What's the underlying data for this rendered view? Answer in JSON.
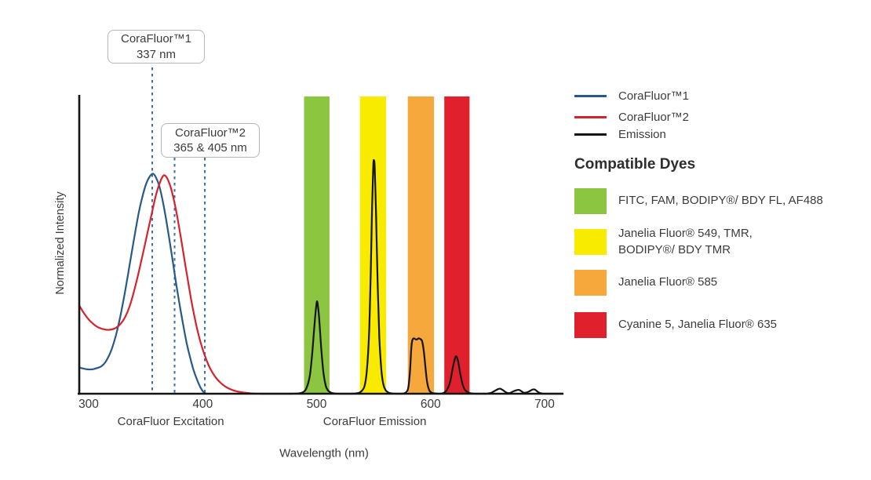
{
  "annotations": {
    "callout_1": {
      "title": "CoraFluor™1",
      "value": "337 nm"
    },
    "callout_2": {
      "title": "CoraFluor™2",
      "value": "365 & 405 nm"
    }
  },
  "legend": {
    "items": [
      {
        "label": "CoraFluor™1",
        "color": "#27598c"
      },
      {
        "label": "CoraFluor™2",
        "color": "#d5232e"
      },
      {
        "label": "Emission",
        "color": "#141414"
      }
    ]
  },
  "dye_panel": {
    "heading": "Compatible Dyes",
    "items": [
      {
        "color": "#8cc540",
        "label": "FITC, FAM, BODIPY®/ BDY FL, AF488"
      },
      {
        "color": "#f9eb00",
        "label": "Janelia Fluor® 549, TMR,\nBODIPY®/ BDY TMR"
      },
      {
        "color": "#f6a83d",
        "label": "Janelia Fluor® 585"
      },
      {
        "color": "#e0202d",
        "label": "Cyanine 5, Janelia Fluor® 635"
      }
    ]
  },
  "chart_data": {
    "type": "line",
    "title": "",
    "xlabel": "Wavelength (nm)",
    "ylabel": "Normalized Intensity",
    "x_ticks": [
      300,
      400,
      500,
      600,
      700
    ],
    "xlim": [
      292,
      716
    ],
    "ylim": [
      0,
      1
    ],
    "grid": false,
    "legend_position": "right",
    "x_section_labels": [
      {
        "text": "CoraFluor Excitation",
        "center_nm": 372
      },
      {
        "text": "CoraFluor Emission",
        "center_nm": 551
      }
    ],
    "marker_lines": [
      {
        "label_nm": 337,
        "plot_nm": 355.8
      },
      {
        "label_nm": 365,
        "plot_nm": 375.4
      },
      {
        "label_nm": 405,
        "plot_nm": 401.9
      }
    ],
    "emission_bands": [
      {
        "range_nm": [
          489,
          511.3
        ],
        "color": "#8cc540",
        "dyes": "FITC, FAM, BODIPY®/ BDY FL, AF488"
      },
      {
        "range_nm": [
          538,
          561
        ],
        "color": "#f9eb00",
        "dyes": "Janelia Fluor® 549, TMR, BODIPY®/ BDY TMR"
      },
      {
        "range_nm": [
          580,
          603
        ],
        "color": "#f6a83d",
        "dyes": "Janelia Fluor® 585"
      },
      {
        "range_nm": [
          612,
          634.2
        ],
        "color": "#e0202d",
        "dyes": "Cyanine 5, Janelia Fluor® 635"
      }
    ],
    "series": [
      {
        "name": "CoraFluor™1",
        "role": "excitation",
        "peaks_nm": [
          337
        ],
        "color": "#27598c",
        "points": [
          [
            292,
            0.088
          ],
          [
            295,
            0.085
          ],
          [
            299,
            0.082
          ],
          [
            303,
            0.082
          ],
          [
            307,
            0.086
          ],
          [
            311,
            0.092
          ],
          [
            315,
            0.108
          ],
          [
            320,
            0.148
          ],
          [
            324,
            0.198
          ],
          [
            328,
            0.265
          ],
          [
            332,
            0.345
          ],
          [
            336,
            0.435
          ],
          [
            340,
            0.525
          ],
          [
            344,
            0.61
          ],
          [
            348,
            0.675
          ],
          [
            351,
            0.712
          ],
          [
            354,
            0.733
          ],
          [
            356.5,
            0.74
          ],
          [
            359,
            0.728
          ],
          [
            362,
            0.698
          ],
          [
            365,
            0.648
          ],
          [
            368,
            0.585
          ],
          [
            371,
            0.515
          ],
          [
            374,
            0.44
          ],
          [
            377,
            0.365
          ],
          [
            380,
            0.295
          ],
          [
            383,
            0.23
          ],
          [
            386,
            0.17
          ],
          [
            389,
            0.122
          ],
          [
            392,
            0.08
          ],
          [
            395,
            0.048
          ],
          [
            398,
            0.022
          ],
          [
            400,
            0.009
          ],
          [
            402,
            0.002
          ],
          [
            403.5,
            0
          ]
        ]
      },
      {
        "name": "CoraFluor™2",
        "role": "excitation",
        "peaks_nm": [
          365,
          405
        ],
        "color": "#d5232e",
        "points": [
          [
            292,
            0.295
          ],
          [
            296,
            0.27
          ],
          [
            300,
            0.25
          ],
          [
            304,
            0.235
          ],
          [
            308,
            0.224
          ],
          [
            312,
            0.218
          ],
          [
            316,
            0.215
          ],
          [
            320,
            0.216
          ],
          [
            324,
            0.222
          ],
          [
            328,
            0.235
          ],
          [
            332,
            0.258
          ],
          [
            336,
            0.295
          ],
          [
            340,
            0.348
          ],
          [
            344,
            0.41
          ],
          [
            348,
            0.478
          ],
          [
            352,
            0.548
          ],
          [
            356,
            0.617
          ],
          [
            359,
            0.668
          ],
          [
            362,
            0.705
          ],
          [
            364.5,
            0.728
          ],
          [
            366.5,
            0.735
          ],
          [
            369,
            0.724
          ],
          [
            372,
            0.694
          ],
          [
            375,
            0.648
          ],
          [
            378,
            0.59
          ],
          [
            381,
            0.522
          ],
          [
            384,
            0.452
          ],
          [
            387,
            0.382
          ],
          [
            390,
            0.315
          ],
          [
            393,
            0.256
          ],
          [
            396,
            0.205
          ],
          [
            399,
            0.162
          ],
          [
            402,
            0.127
          ],
          [
            405,
            0.098
          ],
          [
            408,
            0.075
          ],
          [
            412,
            0.052
          ],
          [
            416,
            0.036
          ],
          [
            420,
            0.024
          ],
          [
            425,
            0.014
          ],
          [
            430,
            0.008
          ],
          [
            436,
            0.004
          ],
          [
            443,
            0.001
          ],
          [
            452,
            0
          ]
        ]
      },
      {
        "name": "Emission",
        "role": "emission",
        "peaks_nm": [
          500,
          550,
          588,
          622
        ],
        "color": "#141414",
        "points": [
          [
            452,
            0
          ],
          [
            466,
            0
          ],
          [
            478,
            0
          ],
          [
            484,
            0.001
          ],
          [
            488,
            0.005
          ],
          [
            491,
            0.018
          ],
          [
            494,
            0.06
          ],
          [
            496,
            0.13
          ],
          [
            498,
            0.225
          ],
          [
            499.5,
            0.29
          ],
          [
            500.3,
            0.311
          ],
          [
            501.2,
            0.295
          ],
          [
            502.5,
            0.24
          ],
          [
            504,
            0.155
          ],
          [
            506,
            0.07
          ],
          [
            508,
            0.027
          ],
          [
            510,
            0.011
          ],
          [
            513,
            0.003
          ],
          [
            516,
            0.001
          ],
          [
            520,
            0
          ],
          [
            531,
            0
          ],
          [
            536,
            0.002
          ],
          [
            539,
            0.007
          ],
          [
            542,
            0.025
          ],
          [
            544,
            0.075
          ],
          [
            546,
            0.2
          ],
          [
            547.5,
            0.41
          ],
          [
            548.7,
            0.63
          ],
          [
            549.7,
            0.765
          ],
          [
            550.3,
            0.785
          ],
          [
            551,
            0.758
          ],
          [
            552.2,
            0.6
          ],
          [
            553.5,
            0.38
          ],
          [
            555,
            0.19
          ],
          [
            556.8,
            0.08
          ],
          [
            558.5,
            0.032
          ],
          [
            560.5,
            0.012
          ],
          [
            563,
            0.004
          ],
          [
            566,
            0.001
          ],
          [
            570,
            0
          ],
          [
            575,
            0
          ],
          [
            578.5,
            0.005
          ],
          [
            580.5,
            0.022
          ],
          [
            582,
            0.08
          ],
          [
            583,
            0.15
          ],
          [
            584,
            0.18
          ],
          [
            585.5,
            0.186
          ],
          [
            587.5,
            0.182
          ],
          [
            589.5,
            0.186
          ],
          [
            591,
            0.184
          ],
          [
            592.5,
            0.177
          ],
          [
            594,
            0.145
          ],
          [
            595.5,
            0.088
          ],
          [
            597,
            0.038
          ],
          [
            598.8,
            0.012
          ],
          [
            601,
            0.003
          ],
          [
            604,
            0.001
          ],
          [
            607.5,
            0
          ],
          [
            611,
            0.002
          ],
          [
            614,
            0.011
          ],
          [
            617,
            0.038
          ],
          [
            619.5,
            0.088
          ],
          [
            621.5,
            0.12
          ],
          [
            622.7,
            0.125
          ],
          [
            624.2,
            0.108
          ],
          [
            626,
            0.068
          ],
          [
            628,
            0.033
          ],
          [
            630.2,
            0.013
          ],
          [
            633,
            0.004
          ],
          [
            636,
            0.001
          ],
          [
            640,
            0
          ],
          [
            649,
            0
          ],
          [
            653,
            0.003
          ],
          [
            656,
            0.009
          ],
          [
            659,
            0.015
          ],
          [
            661,
            0.017
          ],
          [
            663.5,
            0.012
          ],
          [
            666,
            0.005
          ],
          [
            668,
            0.002
          ],
          [
            670,
            0.003
          ],
          [
            672.5,
            0.008
          ],
          [
            675.5,
            0.012
          ],
          [
            677.5,
            0.013
          ],
          [
            679.5,
            0.009
          ],
          [
            681.5,
            0.004
          ],
          [
            684,
            0.004
          ],
          [
            687,
            0.009
          ],
          [
            689.5,
            0.014
          ],
          [
            691.5,
            0.014
          ],
          [
            693.5,
            0.008
          ],
          [
            695.5,
            0.003
          ],
          [
            697.5,
            0.001
          ],
          [
            700,
            0
          ],
          [
            716,
            0
          ]
        ]
      }
    ]
  }
}
